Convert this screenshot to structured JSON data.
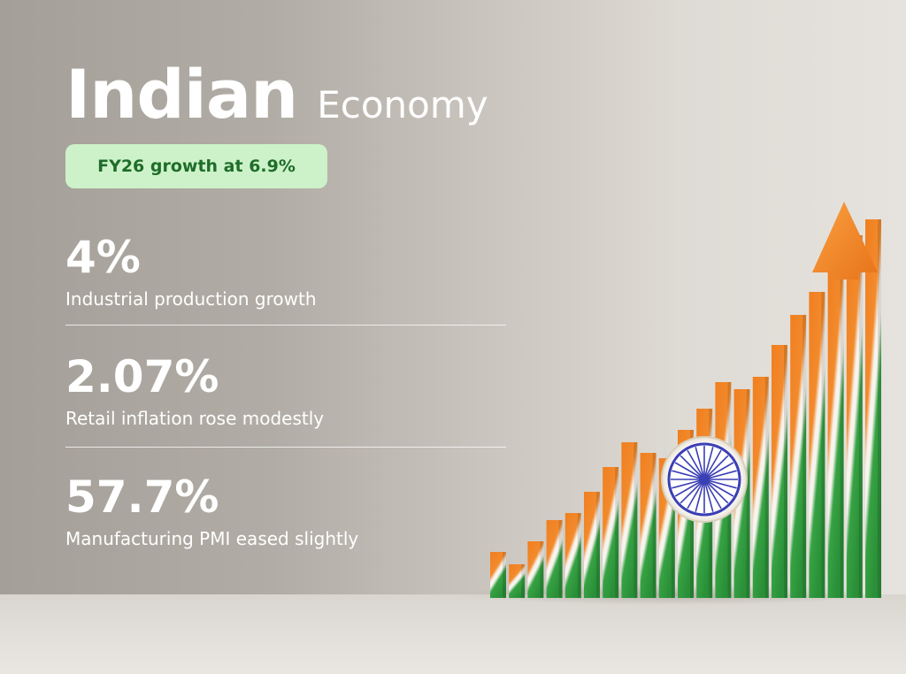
{
  "header": {
    "title_main": "Indian",
    "title_sub": "Economy"
  },
  "badge": {
    "label": "FY26 growth at 6.9%"
  },
  "stats": [
    {
      "value": "4%",
      "label": "Industrial production growth"
    },
    {
      "value": "2.07%",
      "label": "Retail inflation rose modestly"
    },
    {
      "value": "57.7%",
      "label": "Manufacturing PMI eased slightly"
    }
  ],
  "illustration": {
    "icon": "ashoka-chakra-icon",
    "colors": {
      "saffron": "#f07f20",
      "white": "#f7f4ee",
      "green": "#2f9a3e",
      "chakra_blue": "#3a3fb5"
    }
  }
}
